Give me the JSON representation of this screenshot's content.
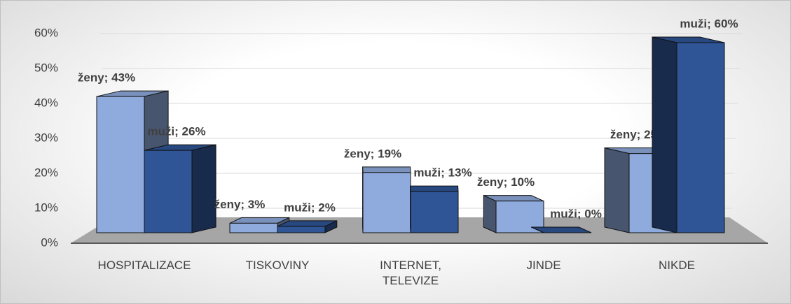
{
  "chart_data": {
    "type": "bar3d",
    "categories": [
      "HOSPITALIZACE",
      "TISKOVINY",
      "INTERNET, TELEVIZE",
      "JINDE",
      "NIKDE"
    ],
    "series": [
      {
        "name": "ženy",
        "color": "#8faadc",
        "values": [
          43,
          3,
          19,
          10,
          25
        ],
        "value_labels": [
          "ženy; 43%",
          "ženy; 3%",
          "ženy; 19%",
          "ženy; 10%",
          "ženy; 25%"
        ]
      },
      {
        "name": "muži",
        "color": "#2f5597",
        "values": [
          26,
          2,
          13,
          0,
          60
        ],
        "value_labels": [
          "muži; 26%",
          "muži; 2%",
          "muži; 13%",
          "muži; 0%",
          "muži; 60%"
        ]
      }
    ],
    "ylim": [
      0,
      60
    ],
    "yticks": [
      {
        "value": 0,
        "label": "0%"
      },
      {
        "value": 10,
        "label": "10%"
      },
      {
        "value": 20,
        "label": "20%"
      },
      {
        "value": 30,
        "label": "30%"
      },
      {
        "value": 40,
        "label": "40%"
      },
      {
        "value": 50,
        "label": "50%"
      },
      {
        "value": 60,
        "label": "60%"
      }
    ],
    "grid": true
  }
}
